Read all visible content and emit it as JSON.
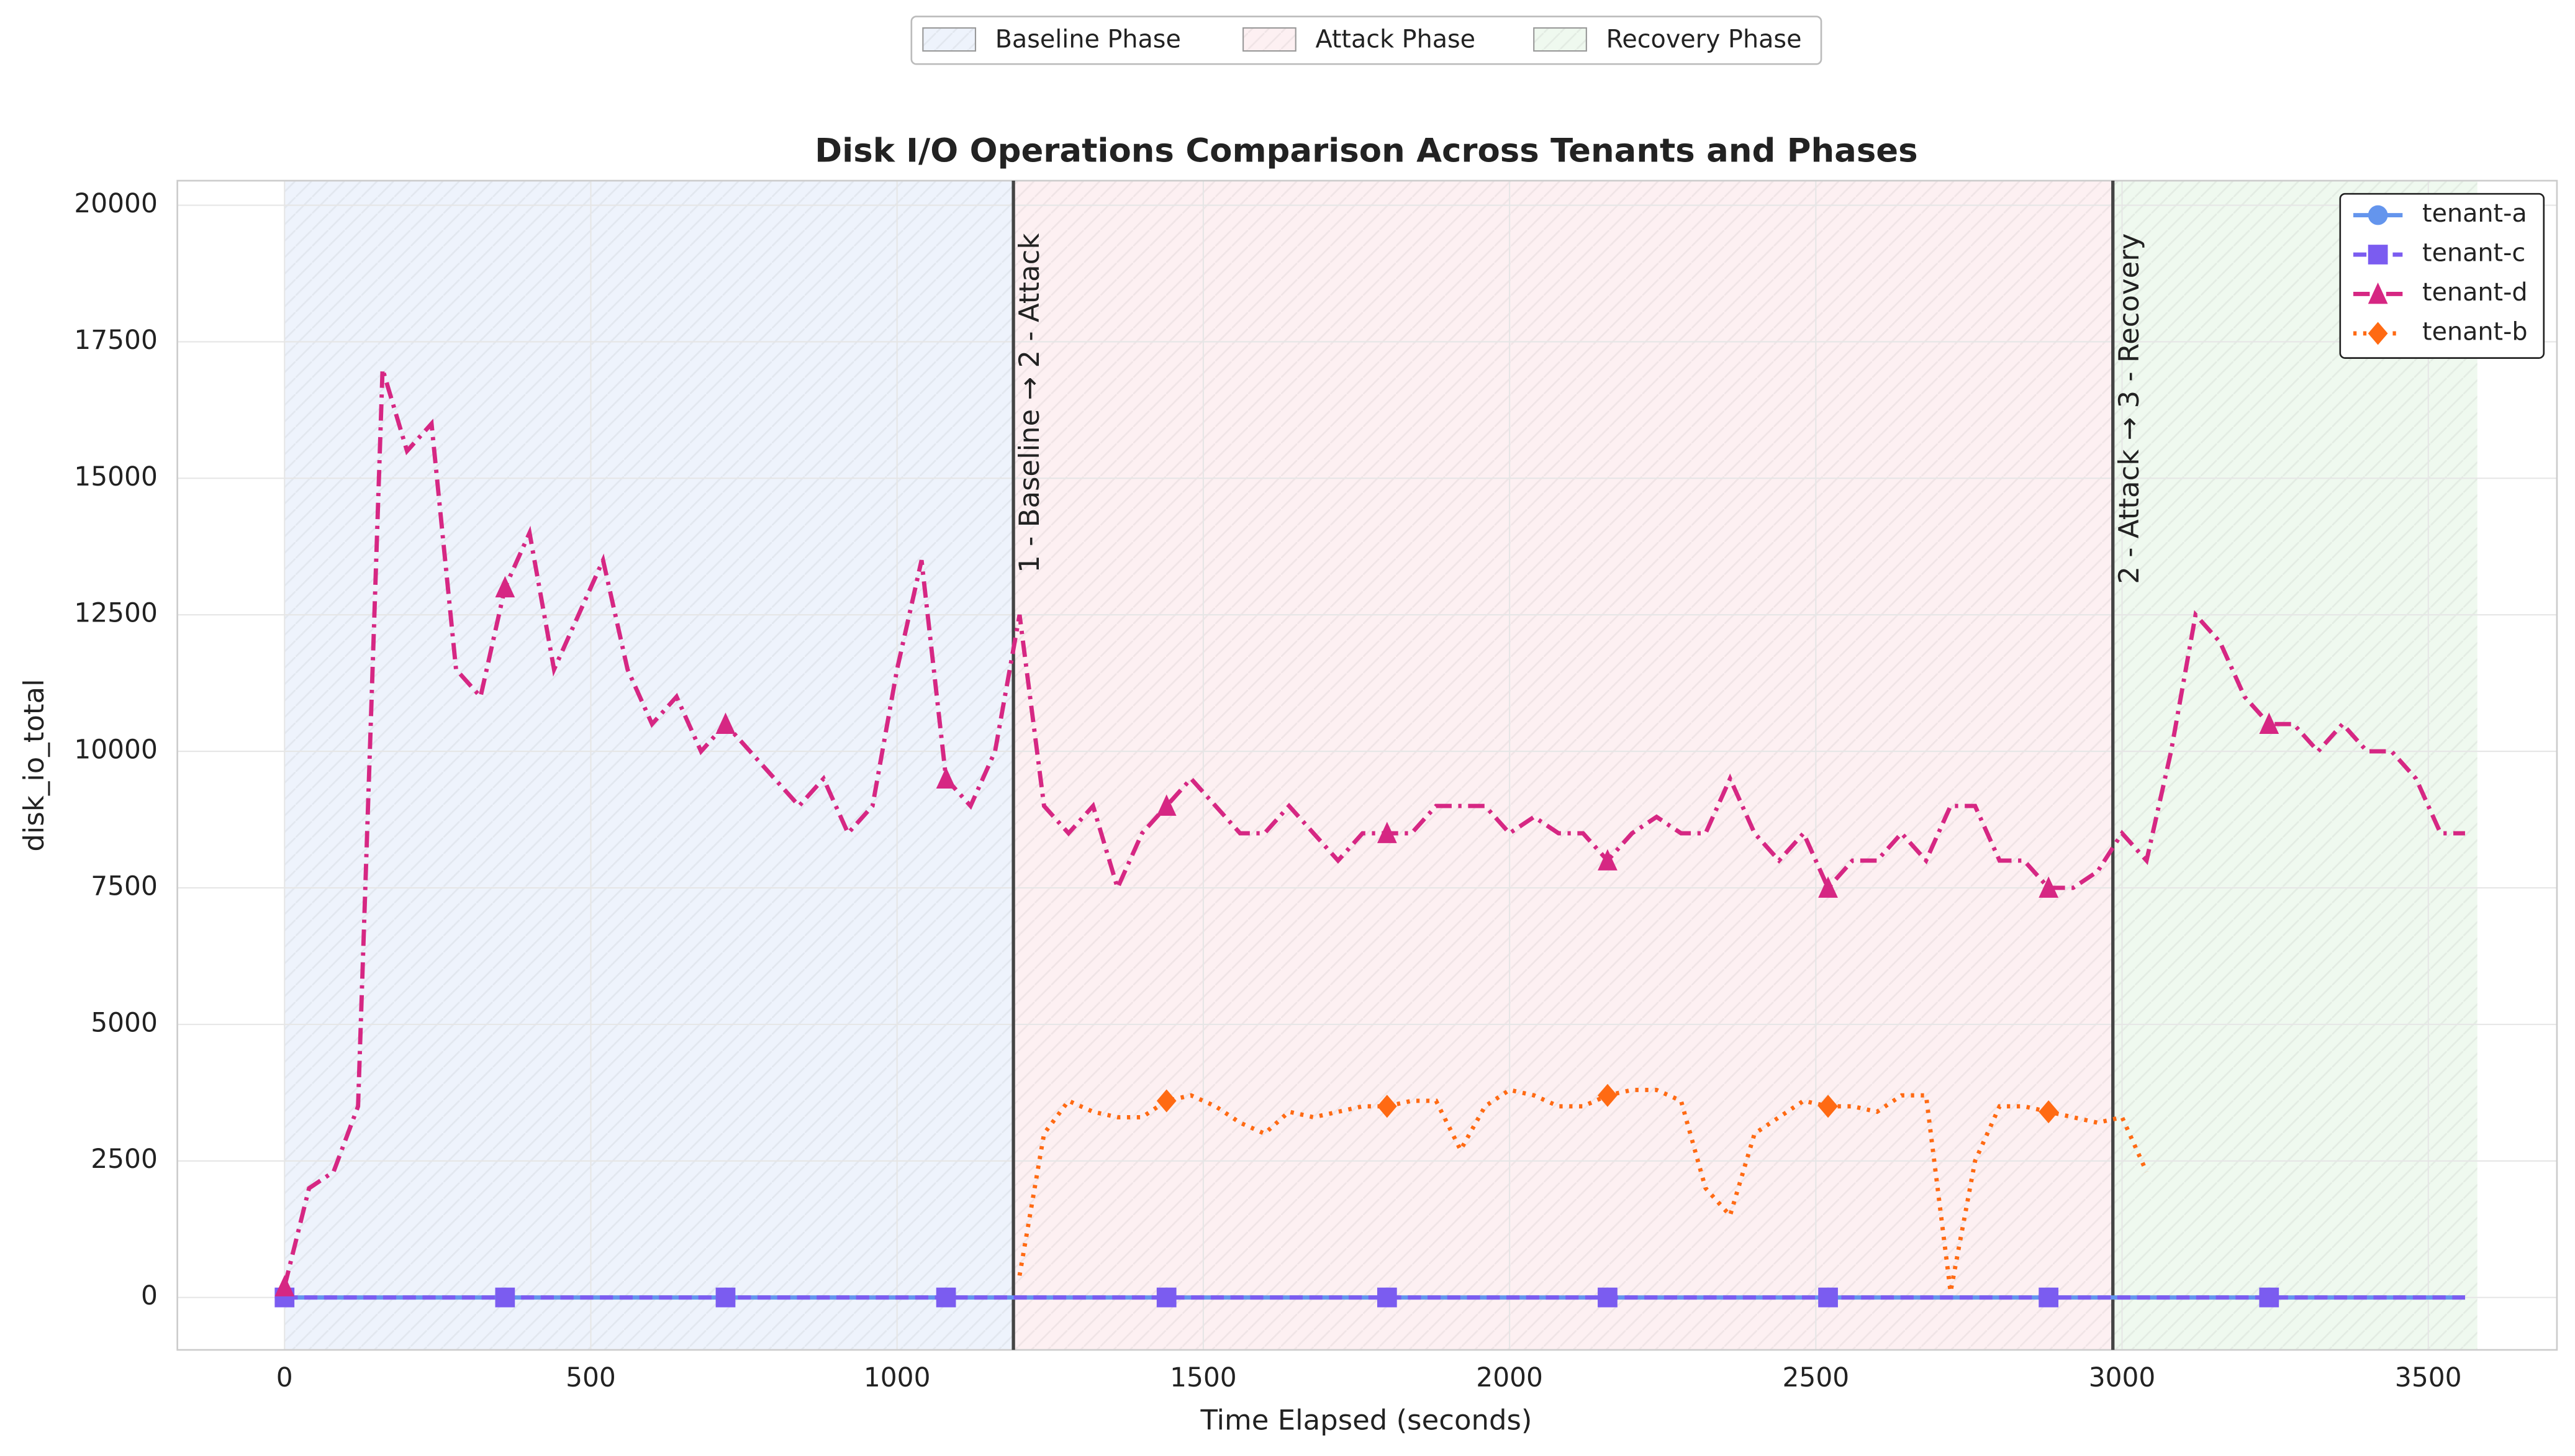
{
  "chart_data": {
    "type": "line",
    "title": "Disk I/O Operations Comparison Across Tenants and Phases",
    "xlabel": "Time Elapsed (seconds)",
    "ylabel": "disk_io_total",
    "xlim": [
      -175,
      3710
    ],
    "ylim": [
      -960,
      20450
    ],
    "xticks": [
      0,
      500,
      1000,
      1500,
      2000,
      2500,
      3000,
      3500
    ],
    "yticks": [
      0,
      2500,
      5000,
      7500,
      10000,
      12500,
      15000,
      17500,
      20000
    ],
    "grid": true,
    "legend": "upper right",
    "phases": [
      {
        "name": "Baseline Phase",
        "start": 0,
        "end": 1190,
        "color": "#eef3fc"
      },
      {
        "name": "Attack Phase",
        "start": 1190,
        "end": 2985,
        "color": "#fdf0f2"
      },
      {
        "name": "Recovery Phase",
        "start": 2985,
        "end": 3580,
        "color": "#eff9ef"
      }
    ],
    "annotations": [
      {
        "x": 1190,
        "text": "1 - Baseline → 2 - Attack"
      },
      {
        "x": 2985,
        "text": "2 - Attack → 3 - Recovery"
      }
    ],
    "x": [
      0,
      40,
      80,
      120,
      160,
      200,
      240,
      280,
      320,
      360,
      400,
      440,
      480,
      520,
      560,
      600,
      640,
      680,
      720,
      760,
      800,
      840,
      880,
      920,
      960,
      1000,
      1040,
      1080,
      1120,
      1160,
      1200,
      1240,
      1280,
      1320,
      1360,
      1400,
      1440,
      1480,
      1520,
      1560,
      1600,
      1640,
      1680,
      1720,
      1760,
      1800,
      1840,
      1880,
      1920,
      1960,
      2000,
      2040,
      2080,
      2120,
      2160,
      2200,
      2240,
      2280,
      2320,
      2360,
      2400,
      2440,
      2480,
      2520,
      2560,
      2600,
      2640,
      2680,
      2720,
      2760,
      2800,
      2840,
      2880,
      2920,
      2960,
      3000,
      3040,
      3080,
      3120,
      3160,
      3200,
      3240,
      3280,
      3320,
      3360,
      3400,
      3440,
      3480,
      3520,
      3560
    ],
    "series": [
      {
        "name": "tenant-a",
        "color": "#6495ed",
        "linestyle": "solid",
        "marker": "circle",
        "values": [
          0,
          0,
          0,
          0,
          0,
          0,
          0,
          0,
          0,
          0,
          0,
          0,
          0,
          0,
          0,
          0,
          0,
          0,
          0,
          0,
          0,
          0,
          0,
          0,
          0,
          0,
          0,
          0,
          0,
          0,
          0,
          0,
          0,
          0,
          0,
          0,
          0,
          0,
          0,
          0,
          0,
          0,
          0,
          0,
          0,
          0,
          0,
          0,
          0,
          0,
          0,
          0,
          0,
          0,
          0,
          0,
          0,
          0,
          0,
          0,
          0,
          0,
          0,
          0,
          0,
          0,
          0,
          0,
          0,
          0,
          0,
          0,
          0,
          0,
          0,
          0,
          0,
          0,
          0,
          0,
          0,
          0,
          0,
          0,
          0,
          0,
          0,
          0,
          0,
          0
        ]
      },
      {
        "name": "tenant-c",
        "color": "#7b5cf0",
        "linestyle": "dashed",
        "marker": "square",
        "values": [
          0,
          0,
          0,
          0,
          0,
          0,
          0,
          0,
          0,
          0,
          0,
          0,
          0,
          0,
          0,
          0,
          0,
          0,
          0,
          0,
          0,
          0,
          0,
          0,
          0,
          0,
          0,
          0,
          0,
          0,
          0,
          0,
          0,
          0,
          0,
          0,
          0,
          0,
          0,
          0,
          0,
          0,
          0,
          0,
          0,
          0,
          0,
          0,
          0,
          0,
          0,
          0,
          0,
          0,
          0,
          0,
          0,
          0,
          0,
          0,
          0,
          0,
          0,
          0,
          0,
          0,
          0,
          0,
          0,
          0,
          0,
          0,
          0,
          0,
          0,
          0,
          0,
          0,
          0,
          0,
          0,
          0,
          0,
          0,
          0,
          0,
          0,
          0,
          0,
          0
        ]
      },
      {
        "name": "tenant-d",
        "color": "#d62783",
        "linestyle": "dashdot",
        "marker": "triangle",
        "values": [
          200,
          2000,
          2300,
          3500,
          17000,
          15500,
          16000,
          11500,
          11000,
          13000,
          14000,
          11500,
          12500,
          13500,
          11500,
          10500,
          11000,
          10000,
          10500,
          10000,
          9500,
          9000,
          9500,
          8500,
          9000,
          11500,
          13500,
          9500,
          9000,
          10000,
          12500,
          9000,
          8500,
          9000,
          7500,
          8500,
          9000,
          9500,
          9000,
          8500,
          8500,
          9000,
          8500,
          8000,
          8500,
          8500,
          8500,
          9000,
          9000,
          9000,
          8500,
          8800,
          8500,
          8500,
          8000,
          8500,
          8800,
          8500,
          8500,
          9500,
          8500,
          8000,
          8500,
          7500,
          8000,
          8000,
          8500,
          8000,
          9000,
          9000,
          8000,
          8000,
          7500,
          7500,
          7800,
          8500,
          8000,
          10000,
          12500,
          12000,
          11000,
          10500,
          10500,
          10000,
          10500,
          10000,
          10000,
          9500,
          8500,
          8500
        ]
      },
      {
        "name": "tenant-b",
        "color": "#ff6a13",
        "linestyle": "dotted",
        "marker": "diamond",
        "values": [
          null,
          null,
          null,
          null,
          null,
          null,
          null,
          null,
          null,
          null,
          null,
          null,
          null,
          null,
          null,
          null,
          null,
          null,
          null,
          null,
          null,
          null,
          null,
          null,
          null,
          null,
          null,
          null,
          null,
          null,
          400,
          3000,
          3600,
          3400,
          3300,
          3300,
          3600,
          3700,
          3500,
          3200,
          3000,
          3400,
          3300,
          3400,
          3500,
          3500,
          3600,
          3600,
          2700,
          3500,
          3800,
          3700,
          3500,
          3500,
          3700,
          3800,
          3800,
          3600,
          2000,
          1500,
          3000,
          3300,
          3600,
          3500,
          3500,
          3400,
          3700,
          3700,
          100,
          2500,
          3500,
          3500,
          3400,
          3300,
          3200,
          3300,
          2300,
          null,
          null,
          null,
          null,
          null,
          null,
          null,
          null,
          null,
          null,
          null,
          null,
          null
        ]
      }
    ]
  }
}
